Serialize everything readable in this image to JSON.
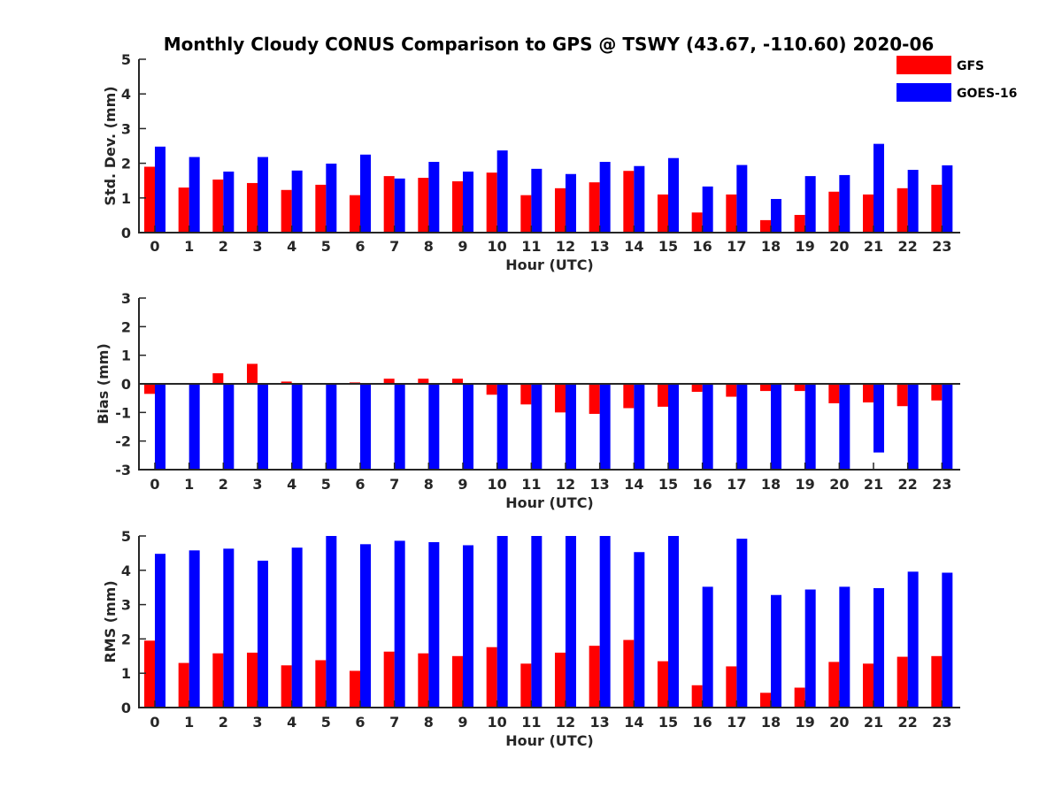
{
  "chart_data": {
    "title": "Monthly Cloudy CONUS Comparison to GPS @ TSWY (43.67, -110.60) 2020-06",
    "categories": [
      "0",
      "1",
      "2",
      "3",
      "4",
      "5",
      "6",
      "7",
      "8",
      "9",
      "10",
      "11",
      "12",
      "13",
      "14",
      "15",
      "16",
      "17",
      "18",
      "19",
      "20",
      "21",
      "22",
      "23"
    ],
    "legend": {
      "placement": "top-right",
      "entries": [
        {
          "name": "GFS",
          "color": "#ff0000"
        },
        {
          "name": "GOES-16",
          "color": "#0000ff"
        }
      ]
    },
    "panels": [
      {
        "type": "bar",
        "xlabel": "Hour (UTC)",
        "ylabel": "Std. Dev. (mm)",
        "ylim": [
          0,
          5
        ],
        "yticks": [
          0,
          1,
          2,
          3,
          4,
          5
        ],
        "series": [
          {
            "name": "GFS",
            "color": "#ff0000",
            "values": [
              1.9,
              1.3,
              1.53,
              1.43,
              1.23,
              1.38,
              1.08,
              1.63,
              1.58,
              1.48,
              1.73,
              1.08,
              1.28,
              1.45,
              1.78,
              1.1,
              0.58,
              1.1,
              0.36,
              0.51,
              1.18,
              1.1,
              1.28,
              1.38
            ]
          },
          {
            "name": "GOES-16",
            "color": "#0000ff",
            "values": [
              2.48,
              2.18,
              1.76,
              2.18,
              1.79,
              1.99,
              2.25,
              1.56,
              2.04,
              1.76,
              2.37,
              1.84,
              1.69,
              2.04,
              1.92,
              2.15,
              1.33,
              1.95,
              0.97,
              1.63,
              1.66,
              2.56,
              1.81,
              1.94
            ]
          }
        ]
      },
      {
        "type": "bar",
        "xlabel": "Hour (UTC)",
        "ylabel": "Bias (mm)",
        "ylim": [
          -3,
          3
        ],
        "yticks": [
          -3,
          -2,
          -1,
          0,
          1,
          2,
          3
        ],
        "series": [
          {
            "name": "GFS",
            "color": "#ff0000",
            "values": [
              -0.35,
              -0.02,
              0.37,
              0.7,
              0.08,
              -0.02,
              0.05,
              0.18,
              0.18,
              0.18,
              -0.38,
              -0.72,
              -1.0,
              -1.05,
              -0.85,
              -0.8,
              -0.28,
              -0.45,
              -0.25,
              -0.25,
              -0.68,
              -0.65,
              -0.78,
              -0.58
            ]
          },
          {
            "name": "GOES-16",
            "color": "#0000ff",
            "values": [
              -3.0,
              -3.0,
              -3.0,
              -3.0,
              -3.0,
              -3.0,
              -3.0,
              -3.0,
              -3.0,
              -3.0,
              -3.0,
              -3.0,
              -3.0,
              -3.0,
              -3.0,
              -3.0,
              -3.0,
              -3.0,
              -3.0,
              -3.0,
              -3.0,
              -2.4,
              -3.0,
              -3.0
            ]
          }
        ]
      },
      {
        "type": "bar",
        "xlabel": "Hour (UTC)",
        "ylabel": "RMS (mm)",
        "ylim": [
          0,
          5
        ],
        "yticks": [
          0,
          1,
          2,
          3,
          4,
          5
        ],
        "series": [
          {
            "name": "GFS",
            "color": "#ff0000",
            "values": [
              1.95,
              1.3,
              1.58,
              1.6,
              1.23,
              1.38,
              1.07,
              1.63,
              1.58,
              1.5,
              1.76,
              1.28,
              1.6,
              1.8,
              1.97,
              1.35,
              0.65,
              1.2,
              0.43,
              0.58,
              1.33,
              1.28,
              1.48,
              1.5
            ]
          },
          {
            "name": "GOES-16",
            "color": "#0000ff",
            "values": [
              4.48,
              4.58,
              4.63,
              4.28,
              4.66,
              5.0,
              4.76,
              4.86,
              4.82,
              4.73,
              5.0,
              5.0,
              5.0,
              5.0,
              4.53,
              5.0,
              3.52,
              4.92,
              3.28,
              3.44,
              3.52,
              3.48,
              3.96,
              3.93
            ]
          }
        ]
      }
    ]
  }
}
